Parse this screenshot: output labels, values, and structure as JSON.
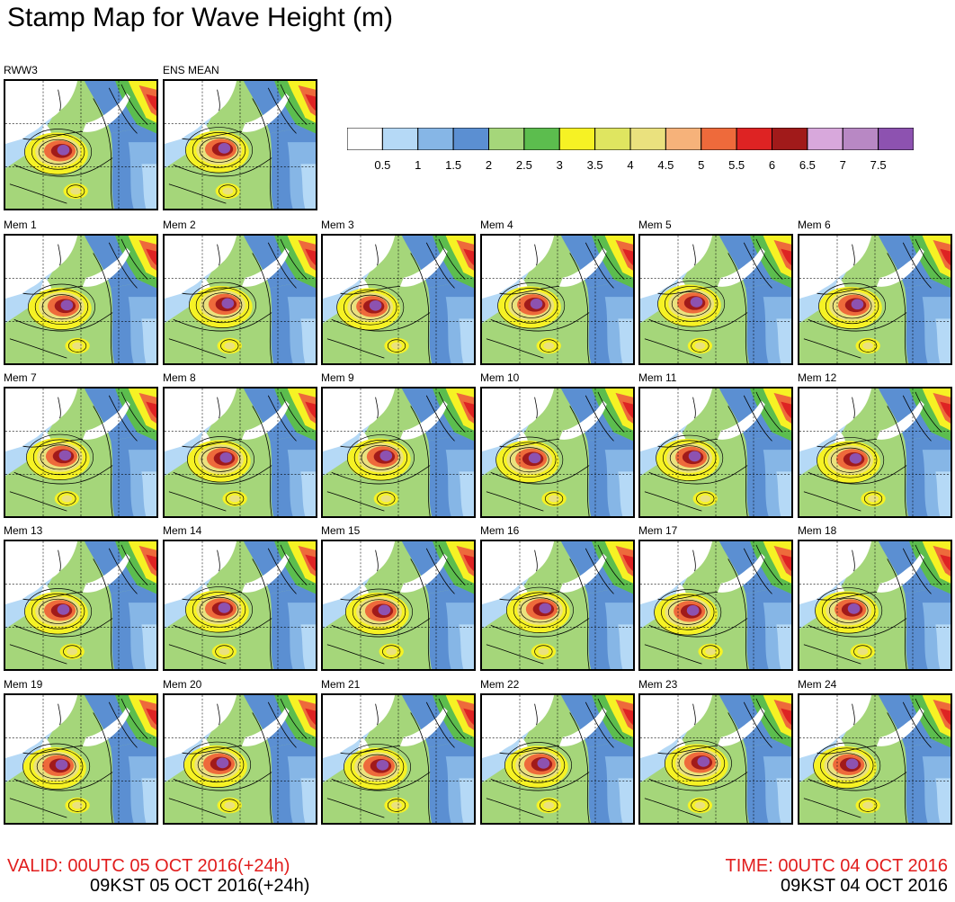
{
  "title": "Stamp Map for Wave Height (m)",
  "panels": [
    "RWW3",
    "ENS MEAN",
    "Mem 1",
    "Mem 2",
    "Mem 3",
    "Mem 4",
    "Mem 5",
    "Mem 6",
    "Mem 7",
    "Mem 8",
    "Mem 9",
    "Mem 10",
    "Mem 11",
    "Mem 12",
    "Mem 13",
    "Mem 14",
    "Mem 15",
    "Mem 16",
    "Mem 17",
    "Mem 18",
    "Mem 19",
    "Mem 20",
    "Mem 21",
    "Mem 22",
    "Mem 23",
    "Mem 24"
  ],
  "legend": {
    "unit_title": "",
    "labels": [
      "0.5",
      "1",
      "1.5",
      "2",
      "2.5",
      "3",
      "3.5",
      "4",
      "4.5",
      "5",
      "5.5",
      "6",
      "6.5",
      "7",
      "7.5"
    ],
    "colors": [
      "#ffffff",
      "#b5d9f6",
      "#86b6e6",
      "#5b8fd2",
      "#a5d67a",
      "#5cbd4e",
      "#f6f224",
      "#dfe560",
      "#eae17e",
      "#f6b27a",
      "#ee6a3b",
      "#de2323",
      "#a11a1a",
      "#d8a8dc",
      "#b888c4",
      "#8d52b0"
    ]
  },
  "footer": {
    "valid_utc": "VALID: 00UTC 05 OCT 2016(+24h)",
    "valid_kst": "09KST 05 OCT 2016(+24h)",
    "time_utc": "TIME: 00UTC 04 OCT 2016",
    "time_kst": "09KST 04 OCT 2016"
  }
}
